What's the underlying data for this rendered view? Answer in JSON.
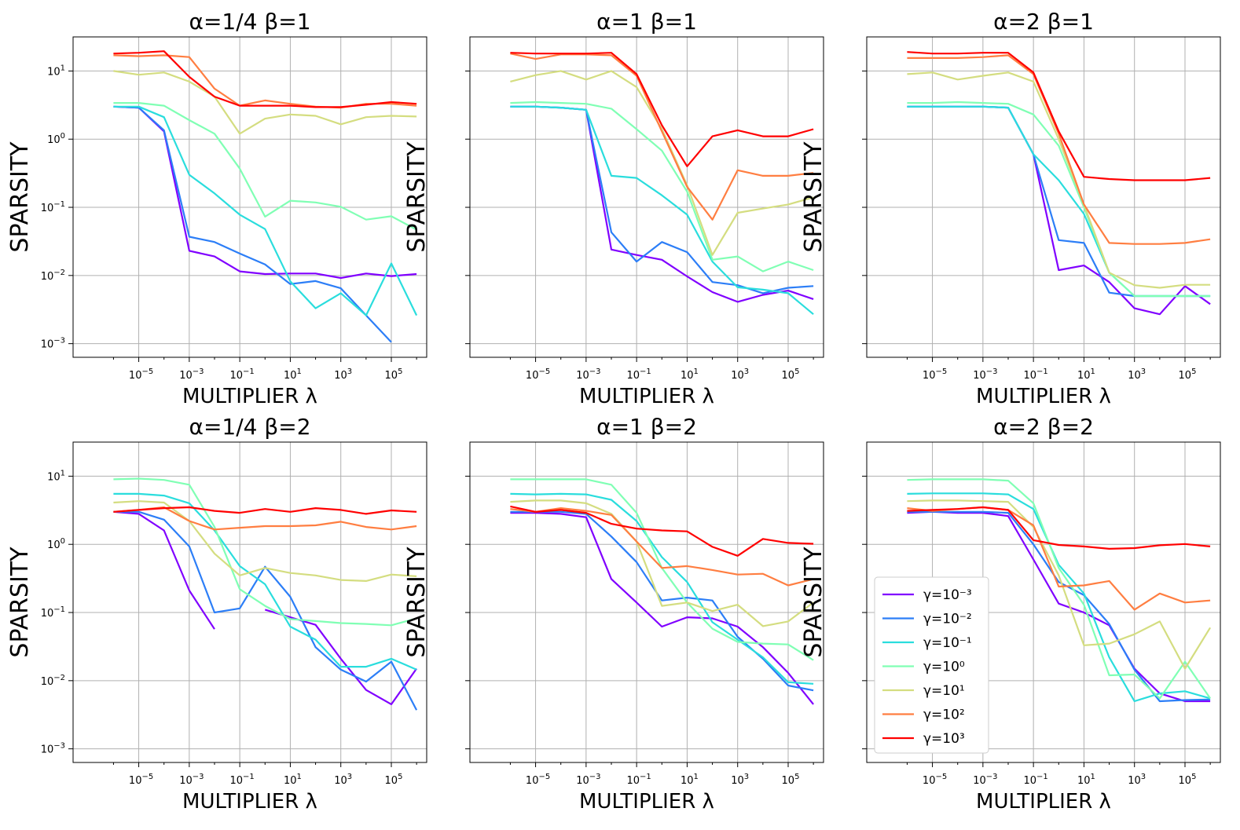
{
  "figure": {
    "x_label": "MULTIPLIER λ",
    "y_label": "SPARSITY"
  },
  "legend": {
    "position": "bottom-left of lower-right panel",
    "entries": [
      {
        "label": "γ=10⁻³",
        "color": "#8000ff"
      },
      {
        "label": "γ=10⁻²",
        "color": "#2c7ef7"
      },
      {
        "label": "γ=10⁻¹",
        "color": "#2adddd"
      },
      {
        "label": "γ=10⁰",
        "color": "#80ffb4"
      },
      {
        "label": "γ=10¹",
        "color": "#d4dd80"
      },
      {
        "label": "γ=10²",
        "color": "#ff7e41"
      },
      {
        "label": "γ=10³",
        "color": "#ff0000"
      }
    ]
  },
  "chart_data": {
    "type": "line",
    "x_scale": "log",
    "y_scale": "log",
    "x": [
      1e-06,
      1e-05,
      0.0001,
      0.001,
      0.01,
      0.1,
      1,
      10,
      100,
      1000,
      10000,
      100000,
      1000000
    ],
    "xlim_log10": [
      -7.6,
      6.4
    ],
    "ylim_log10": [
      -3.2,
      1.5
    ],
    "x_ticks": [
      {
        "base": "10",
        "exp": "−5",
        "v": -5
      },
      {
        "base": "10",
        "exp": "−3",
        "v": -3
      },
      {
        "base": "10",
        "exp": "−1",
        "v": -1
      },
      {
        "base": "10",
        "exp": "1",
        "v": 1
      },
      {
        "base": "10",
        "exp": "3",
        "v": 3
      },
      {
        "base": "10",
        "exp": "5",
        "v": 5
      }
    ],
    "y_ticks": [
      {
        "base": "10",
        "exp": "1",
        "v": 1
      },
      {
        "base": "10",
        "exp": "0",
        "v": 0
      },
      {
        "base": "10",
        "exp": "−1",
        "v": -1
      },
      {
        "base": "10",
        "exp": "−2",
        "v": -2
      },
      {
        "base": "10",
        "exp": "−3",
        "v": -3
      }
    ],
    "series_names": [
      "γ=10⁻³",
      "γ=10⁻²",
      "γ=10⁻¹",
      "γ=10⁰",
      "γ=10¹",
      "γ=10²",
      "γ=10³"
    ],
    "panels": [
      {
        "title": "α=1/4 β=1",
        "series": [
          [
            3.0,
            2.9,
            1.3,
            0.023,
            0.019,
            0.0115,
            0.0105,
            0.0107,
            0.0107,
            0.0092,
            0.0107,
            0.0098,
            0.0105
          ],
          [
            3.0,
            2.9,
            1.35,
            0.037,
            0.031,
            0.021,
            0.0145,
            0.0075,
            0.0083,
            0.0065,
            0.0026,
            0.00105,
            null
          ],
          [
            3.0,
            3.0,
            2.1,
            0.3,
            0.16,
            0.078,
            0.048,
            0.0082,
            0.0033,
            0.0055,
            0.0026,
            0.015,
            0.0026
          ],
          [
            3.4,
            3.4,
            3.1,
            1.9,
            1.2,
            0.37,
            0.073,
            0.125,
            0.118,
            0.102,
            0.066,
            0.074,
            0.047
          ],
          [
            10.0,
            8.8,
            9.5,
            7.0,
            4.2,
            1.2,
            2.0,
            2.3,
            2.2,
            1.65,
            2.1,
            2.2,
            2.15
          ],
          [
            17.0,
            16.5,
            17.0,
            16.0,
            5.5,
            3.1,
            3.7,
            3.3,
            3.0,
            2.9,
            3.3,
            3.3,
            3.1
          ],
          [
            18.0,
            18.5,
            19.5,
            8.2,
            4.2,
            3.1,
            3.1,
            3.1,
            2.95,
            2.95,
            3.2,
            3.5,
            3.3
          ]
        ]
      },
      {
        "title": "α=1 β=1",
        "series": [
          [
            3.0,
            3.0,
            2.9,
            2.7,
            0.024,
            0.02,
            0.017,
            0.0097,
            0.0057,
            0.0041,
            0.0052,
            0.006,
            0.0045
          ],
          [
            3.0,
            3.0,
            2.9,
            2.7,
            0.043,
            0.016,
            0.031,
            0.022,
            0.008,
            0.0072,
            0.0055,
            0.0066,
            0.007
          ],
          [
            3.0,
            3.0,
            2.9,
            2.7,
            0.29,
            0.27,
            0.15,
            0.078,
            0.016,
            0.0067,
            0.0062,
            0.0055,
            0.0027
          ],
          [
            3.4,
            3.5,
            3.4,
            3.3,
            2.8,
            1.4,
            0.68,
            0.17,
            0.017,
            0.019,
            0.0115,
            0.016,
            0.012
          ],
          [
            7.0,
            8.7,
            10.0,
            7.5,
            10.0,
            5.8,
            1.4,
            0.21,
            0.02,
            0.083,
            0.096,
            0.11,
            0.14
          ],
          [
            18.0,
            15.0,
            17.5,
            17.5,
            17.0,
            8.5,
            1.3,
            0.2,
            0.066,
            0.35,
            0.29,
            0.29,
            0.32
          ],
          [
            18.5,
            18.0,
            18.0,
            18.0,
            18.5,
            9.0,
            1.6,
            0.4,
            1.1,
            1.35,
            1.1,
            1.1,
            1.4
          ]
        ]
      },
      {
        "title": "α=2 β=1",
        "series": [
          [
            3.0,
            3.0,
            3.0,
            3.0,
            2.9,
            0.6,
            0.012,
            0.014,
            0.008,
            0.0033,
            0.0027,
            0.007,
            0.0038
          ],
          [
            3.0,
            3.0,
            3.0,
            3.0,
            2.9,
            0.6,
            0.033,
            0.03,
            0.0056,
            0.005,
            0.005,
            0.005,
            0.005
          ],
          [
            3.0,
            3.0,
            3.0,
            3.0,
            2.9,
            0.6,
            0.25,
            0.08,
            0.011,
            0.005,
            0.005,
            0.005,
            0.005
          ],
          [
            3.4,
            3.4,
            3.5,
            3.4,
            3.3,
            2.3,
            0.8,
            0.1,
            0.011,
            0.005,
            0.005,
            0.005,
            0.005
          ],
          [
            9.0,
            9.5,
            7.5,
            8.5,
            9.5,
            7.0,
            1.0,
            0.11,
            0.011,
            0.0072,
            0.0066,
            0.0073,
            0.0073
          ],
          [
            15.5,
            15.5,
            15.5,
            16.0,
            17.0,
            9.0,
            1.2,
            0.11,
            0.03,
            0.029,
            0.029,
            0.03,
            0.034
          ],
          [
            19.0,
            18.0,
            18.0,
            18.5,
            18.5,
            9.5,
            1.3,
            0.28,
            0.26,
            0.25,
            0.25,
            0.25,
            0.27
          ]
        ]
      },
      {
        "title": "α=1/4 β=2",
        "series": [
          [
            3.0,
            2.8,
            1.6,
            0.21,
            0.057,
            null,
            0.11,
            0.085,
            0.066,
            0.021,
            0.0073,
            0.0045,
            0.015
          ],
          [
            3.0,
            3.0,
            2.3,
            0.93,
            0.1,
            0.115,
            0.47,
            0.17,
            0.031,
            0.0145,
            0.0097,
            0.019,
            0.0037
          ],
          [
            5.5,
            5.5,
            5.2,
            4.0,
            1.6,
            0.48,
            0.26,
            0.062,
            0.04,
            0.016,
            0.016,
            0.021,
            0.0145
          ],
          [
            9.0,
            9.2,
            8.8,
            7.5,
            1.8,
            0.22,
            0.125,
            0.08,
            0.075,
            0.07,
            0.068,
            0.065,
            0.082
          ],
          [
            4.1,
            4.3,
            4.1,
            2.2,
            0.73,
            0.35,
            0.45,
            0.38,
            0.35,
            0.3,
            0.29,
            0.36,
            0.34
          ],
          [
            3.0,
            3.2,
            3.5,
            2.2,
            1.65,
            1.75,
            1.85,
            1.85,
            1.9,
            2.15,
            1.8,
            1.65,
            1.85
          ],
          [
            3.0,
            3.2,
            3.4,
            3.5,
            3.1,
            2.9,
            3.3,
            3.0,
            3.4,
            3.2,
            2.8,
            3.15,
            3.0
          ]
        ]
      },
      {
        "title": "α=1 β=2",
        "series": [
          [
            2.9,
            2.9,
            2.8,
            2.5,
            0.31,
            0.14,
            0.062,
            0.085,
            0.082,
            0.062,
            0.031,
            0.013,
            0.0045
          ],
          [
            3.0,
            3.0,
            3.0,
            2.8,
            1.3,
            0.55,
            0.15,
            0.165,
            0.15,
            0.044,
            0.021,
            0.0085,
            0.0072
          ],
          [
            5.5,
            5.4,
            5.5,
            5.4,
            4.5,
            2.2,
            0.65,
            0.28,
            0.072,
            0.04,
            0.022,
            0.0095,
            0.009
          ],
          [
            9.0,
            9.0,
            9.0,
            9.0,
            7.5,
            2.9,
            0.45,
            0.14,
            0.058,
            0.037,
            0.035,
            0.034,
            0.02
          ],
          [
            4.2,
            4.4,
            4.4,
            4.0,
            2.8,
            1.1,
            0.125,
            0.14,
            0.105,
            0.13,
            0.063,
            0.074,
            0.14
          ],
          [
            3.3,
            3.0,
            3.4,
            3.1,
            2.7,
            1.1,
            0.45,
            0.48,
            0.42,
            0.36,
            0.37,
            0.25,
            0.31
          ],
          [
            3.6,
            3.0,
            3.2,
            2.9,
            2.0,
            1.7,
            1.6,
            1.55,
            0.92,
            0.68,
            1.2,
            1.05,
            1.02
          ]
        ]
      },
      {
        "title": "α=2 β=2",
        "series": [
          [
            2.9,
            3.0,
            2.9,
            2.9,
            2.6,
            0.6,
            0.135,
            0.1,
            0.065,
            0.015,
            0.0065,
            0.005,
            0.005
          ],
          [
            3.0,
            3.0,
            3.0,
            3.0,
            2.9,
            1.0,
            0.28,
            0.18,
            0.068,
            0.0145,
            0.005,
            0.0052,
            0.0053
          ],
          [
            5.5,
            5.6,
            5.6,
            5.6,
            5.4,
            3.3,
            0.5,
            0.19,
            0.022,
            0.005,
            0.0065,
            0.007,
            0.0055
          ],
          [
            8.8,
            9.0,
            9.0,
            9.0,
            8.6,
            4.0,
            0.45,
            0.13,
            0.012,
            0.0123,
            0.0055,
            0.019,
            0.0055
          ],
          [
            4.3,
            4.4,
            4.4,
            4.3,
            4.2,
            1.8,
            0.35,
            0.033,
            0.035,
            0.048,
            0.074,
            0.015,
            0.06
          ],
          [
            3.4,
            3.1,
            3.3,
            3.5,
            3.2,
            1.9,
            0.24,
            0.25,
            0.29,
            0.11,
            0.19,
            0.14,
            0.15
          ],
          [
            3.1,
            3.2,
            3.3,
            3.5,
            3.2,
            1.15,
            0.98,
            0.93,
            0.86,
            0.88,
            0.97,
            1.01,
            0.93
          ]
        ]
      }
    ]
  }
}
